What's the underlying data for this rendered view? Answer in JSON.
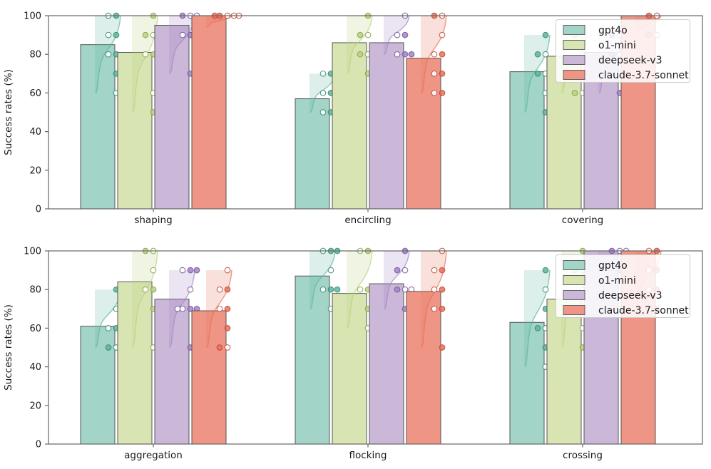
{
  "chart_data": {
    "type": "bar",
    "title": "",
    "ylabel": "Success rates (%)",
    "xlabel": "",
    "ylim": [
      0,
      100
    ],
    "yticks": [
      0,
      20,
      40,
      60,
      80,
      100
    ],
    "grid": false,
    "legend_position": "upper right",
    "legend_entries": [
      "gpt4o",
      "o1-mini",
      "deepseek-v3",
      "claude-3.7-sonnet"
    ],
    "series": [
      {
        "name": "gpt4o",
        "bar_fill": "#a2d4c7",
        "accent": "#5eb5a0",
        "accent_dark": "#35876f"
      },
      {
        "name": "o1-mini",
        "bar_fill": "#d8e5b2",
        "accent": "#b9d37f",
        "accent_dark": "#84a24b"
      },
      {
        "name": "deepseek-v3",
        "bar_fill": "#cbb7d8",
        "accent": "#a684c4",
        "accent_dark": "#71539b"
      },
      {
        "name": "claude-3.7-sonnet",
        "bar_fill": "#ef9585",
        "accent": "#e8705c",
        "accent_dark": "#bf4636"
      }
    ],
    "bar_edge_color": "#555555",
    "axis_color": "#666666",
    "text_color": "#1a1a1a",
    "panels": [
      {
        "name": "top",
        "ylabel": "Success rates (%)",
        "groups": [
          {
            "label": "shaping",
            "bar_values": [
              85,
              81,
              95,
              100
            ],
            "points": [
              [
                100,
                100,
                90,
                90,
                80,
                80,
                70,
                60
              ],
              [
                100,
                90,
                90,
                90,
                80,
                80,
                80,
                60,
                50
              ],
              [
                100,
                100,
                100,
                90,
                90,
                70
              ],
              [
                100,
                100,
                100,
                100,
                100
              ]
            ]
          },
          {
            "label": "encircling",
            "bar_values": [
              57,
              86,
              86,
              78
            ],
            "points": [
              [
                70,
                70,
                60,
                60,
                50,
                50
              ],
              [
                100,
                90,
                90,
                80,
                80,
                80,
                70
              ],
              [
                100,
                90,
                90,
                80,
                80,
                80
              ],
              [
                100,
                100,
                90,
                80,
                80,
                70,
                70,
                60,
                60
              ]
            ]
          },
          {
            "label": "covering",
            "bar_values": [
              71,
              79,
              81,
              100
            ],
            "points": [
              [
                90,
                80,
                80,
                70,
                70,
                60,
                50
              ],
              [
                90,
                90,
                80,
                70,
                60,
                60
              ],
              [
                90,
                90,
                80,
                80,
                70,
                60
              ],
              [
                100,
                100,
                90,
                90
              ]
            ]
          }
        ]
      },
      {
        "name": "bottom",
        "ylabel": "Success rates (%)",
        "groups": [
          {
            "label": "aggregation",
            "bar_values": [
              61,
              84,
              75,
              69
            ],
            "points": [
              [
                80,
                70,
                60,
                60,
                60,
                50,
                50
              ],
              [
                100,
                100,
                90,
                80,
                80,
                70,
                50
              ],
              [
                90,
                90,
                90,
                80,
                70,
                70,
                70,
                70,
                50
              ],
              [
                90,
                80,
                80,
                70,
                70,
                60,
                50,
                50
              ]
            ]
          },
          {
            "label": "flocking",
            "bar_values": [
              87,
              78,
              83,
              79
            ],
            "points": [
              [
                100,
                100,
                100,
                90,
                80,
                80,
                80,
                70
              ],
              [
                100,
                100,
                80,
                80,
                70,
                60
              ],
              [
                100,
                90,
                90,
                80,
                80,
                80,
                70
              ],
              [
                100,
                90,
                90,
                80,
                80,
                70,
                70,
                50
              ]
            ]
          },
          {
            "label": "crossing",
            "bar_values": [
              63,
              75,
              100,
              100
            ],
            "points": [
              [
                90,
                80,
                70,
                60,
                60,
                60,
                50,
                40
              ],
              [
                100,
                90,
                90,
                80,
                70,
                60,
                50
              ],
              [
                100,
                100,
                100,
                90,
                70
              ],
              [
                100,
                100,
                90,
                90,
                80,
                80,
                70,
                70
              ]
            ]
          }
        ]
      }
    ]
  }
}
